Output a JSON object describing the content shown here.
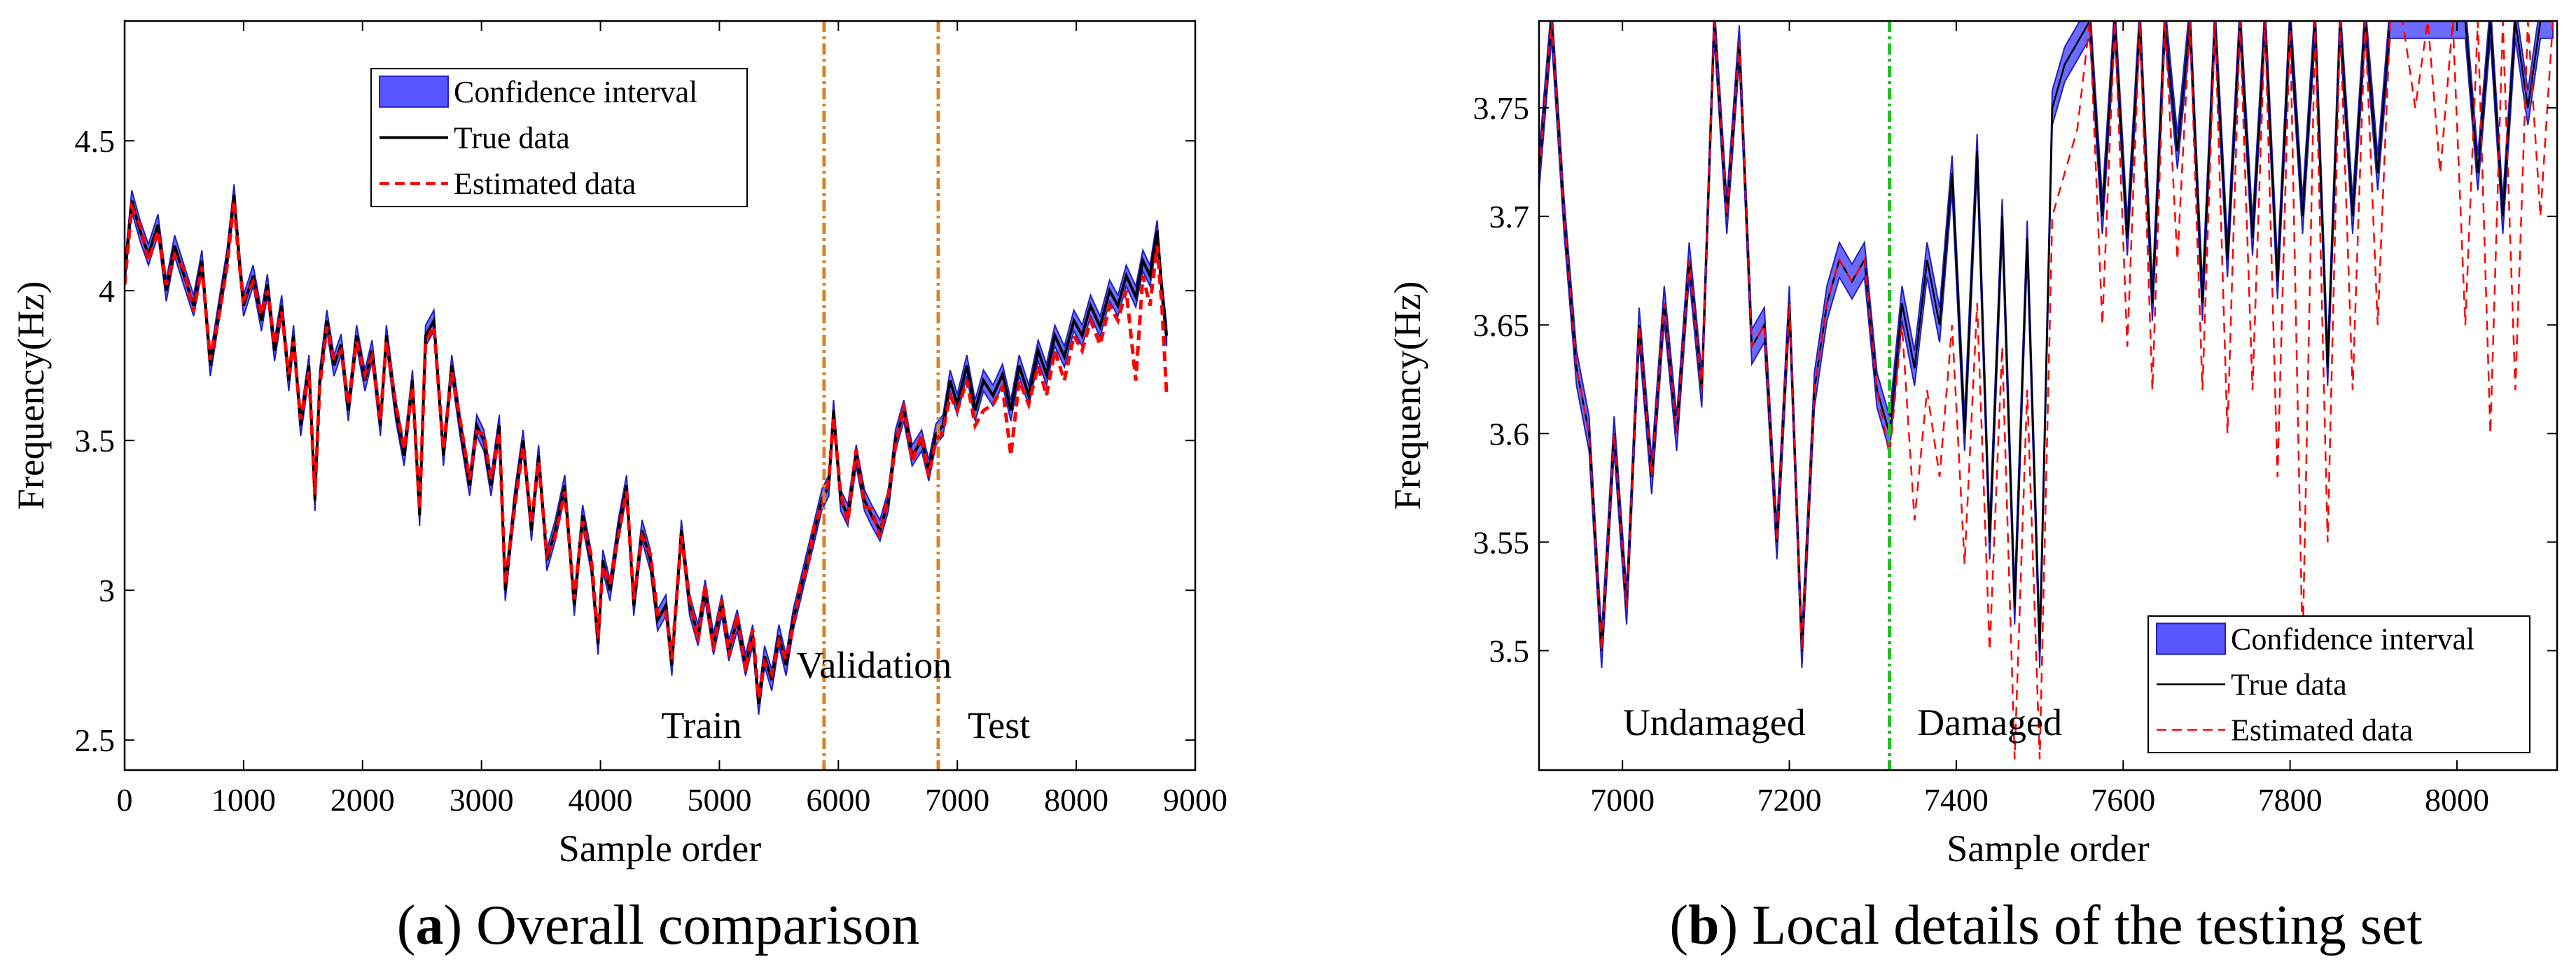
{
  "chart_data": [
    {
      "id": "a",
      "type": "line",
      "caption_letter": "a",
      "caption_text": ") Overall comparison",
      "caption_open": "(",
      "xlabel": "Sample order",
      "ylabel": "Frequency(Hz)",
      "xlim": [
        0,
        9000
      ],
      "ylim": [
        2.4,
        4.9
      ],
      "xticks": [
        0,
        1000,
        2000,
        3000,
        4000,
        5000,
        6000,
        7000,
        8000,
        9000
      ],
      "xtick_labels": [
        "0",
        "1000",
        "2000",
        "3000",
        "4000",
        "5000",
        "6000",
        "7000",
        "8000",
        "9000"
      ],
      "yticks": [
        2.5,
        3,
        3.5,
        4,
        4.5
      ],
      "ytick_labels": [
        "2.5",
        "3",
        "3.5",
        "4",
        "4.5"
      ],
      "legend": [
        "Confidence interval",
        "True data",
        "Estimated data"
      ],
      "legend_position": "top-center",
      "split_lines": [
        5880,
        6840
      ],
      "region_labels": [
        {
          "text": "Train",
          "x": 4850,
          "y": 2.55
        },
        {
          "text": "Validation",
          "x": 6300,
          "y": 2.75
        },
        {
          "text": "Test",
          "x": 7350,
          "y": 2.55
        }
      ],
      "series": [
        {
          "name": "True data",
          "x": [
            0,
            60,
            130,
            200,
            280,
            350,
            420,
            500,
            580,
            650,
            720,
            800,
            860,
            920,
            960,
            1000,
            1080,
            1150,
            1200,
            1260,
            1320,
            1380,
            1420,
            1480,
            1550,
            1600,
            1640,
            1700,
            1760,
            1820,
            1880,
            1950,
            2020,
            2080,
            2150,
            2200,
            2280,
            2350,
            2420,
            2480,
            2530,
            2600,
            2680,
            2750,
            2820,
            2900,
            2960,
            3020,
            3080,
            3150,
            3200,
            3280,
            3350,
            3420,
            3480,
            3550,
            3620,
            3700,
            3780,
            3850,
            3920,
            3980,
            4020,
            4080,
            4150,
            4220,
            4280,
            4350,
            4420,
            4480,
            4550,
            4600,
            4680,
            4750,
            4820,
            4880,
            4950,
            5020,
            5080,
            5150,
            5220,
            5280,
            5330,
            5380,
            5440,
            5500,
            5560,
            5620,
            5680,
            5740,
            5800,
            5860,
            5920,
            5960,
            6020,
            6080,
            6150,
            6220,
            6280,
            6350,
            6420,
            6480,
            6550,
            6620,
            6700,
            6760,
            6820,
            6880,
            6940,
            7000,
            7080,
            7150,
            7220,
            7300,
            7380,
            7450,
            7520,
            7600,
            7680,
            7750,
            7820,
            7900,
            7980,
            8050,
            8120,
            8200,
            8280,
            8350,
            8420,
            8500,
            8560,
            8620,
            8680,
            8720,
            8760
          ],
          "values": [
            4.05,
            4.3,
            4.2,
            4.12,
            4.22,
            4.0,
            4.15,
            4.05,
            3.95,
            4.1,
            3.75,
            3.95,
            4.1,
            4.32,
            4.12,
            3.95,
            4.05,
            3.9,
            4.02,
            3.8,
            3.95,
            3.7,
            3.85,
            3.55,
            3.75,
            3.3,
            3.7,
            3.9,
            3.75,
            3.82,
            3.6,
            3.85,
            3.7,
            3.8,
            3.55,
            3.85,
            3.6,
            3.45,
            3.7,
            3.25,
            3.85,
            3.9,
            3.45,
            3.75,
            3.55,
            3.35,
            3.55,
            3.5,
            3.35,
            3.55,
            3.0,
            3.3,
            3.5,
            3.2,
            3.45,
            3.1,
            3.2,
            3.35,
            2.95,
            3.25,
            3.1,
            2.82,
            3.1,
            3.0,
            3.2,
            3.35,
            2.95,
            3.2,
            3.1,
            2.9,
            2.95,
            2.75,
            3.2,
            2.95,
            2.85,
            3.0,
            2.82,
            2.95,
            2.8,
            2.9,
            2.75,
            2.85,
            2.62,
            2.78,
            2.7,
            2.85,
            2.75,
            2.9,
            3.0,
            3.1,
            3.2,
            3.3,
            3.35,
            3.6,
            3.3,
            3.25,
            3.45,
            3.3,
            3.25,
            3.2,
            3.3,
            3.5,
            3.6,
            3.45,
            3.5,
            3.4,
            3.52,
            3.55,
            3.7,
            3.62,
            3.75,
            3.6,
            3.7,
            3.65,
            3.72,
            3.6,
            3.75,
            3.65,
            3.8,
            3.72,
            3.85,
            3.78,
            3.9,
            3.85,
            3.95,
            3.88,
            4.0,
            3.95,
            4.05,
            3.98,
            4.1,
            4.05,
            4.2,
            4.0,
            3.85
          ]
        },
        {
          "name": "Estimated data",
          "x": [
            0,
            60,
            130,
            200,
            280,
            350,
            420,
            500,
            580,
            650,
            720,
            800,
            860,
            920,
            960,
            1000,
            1080,
            1150,
            1200,
            1260,
            1320,
            1380,
            1420,
            1480,
            1550,
            1600,
            1640,
            1700,
            1760,
            1820,
            1880,
            1950,
            2020,
            2080,
            2150,
            2200,
            2280,
            2350,
            2420,
            2480,
            2530,
            2600,
            2680,
            2750,
            2820,
            2900,
            2960,
            3020,
            3080,
            3150,
            3200,
            3280,
            3350,
            3420,
            3480,
            3550,
            3620,
            3700,
            3780,
            3850,
            3920,
            3980,
            4020,
            4080,
            4150,
            4220,
            4280,
            4350,
            4420,
            4480,
            4550,
            4600,
            4680,
            4750,
            4820,
            4880,
            4950,
            5020,
            5080,
            5150,
            5220,
            5280,
            5330,
            5380,
            5440,
            5500,
            5560,
            5620,
            5680,
            5740,
            5800,
            5860,
            5920,
            5960,
            6020,
            6080,
            6150,
            6220,
            6280,
            6350,
            6420,
            6480,
            6550,
            6620,
            6700,
            6760,
            6820,
            6880,
            6940,
            7000,
            7080,
            7150,
            7220,
            7300,
            7380,
            7450,
            7520,
            7600,
            7680,
            7750,
            7820,
            7900,
            7980,
            8050,
            8120,
            8200,
            8280,
            8350,
            8420,
            8500,
            8560,
            8620,
            8680,
            8720,
            8760
          ],
          "values": [
            4.02,
            4.28,
            4.22,
            4.1,
            4.2,
            4.02,
            4.12,
            4.07,
            3.93,
            4.08,
            3.77,
            3.93,
            4.08,
            4.3,
            4.1,
            3.97,
            4.03,
            3.92,
            4.0,
            3.82,
            3.93,
            3.72,
            3.83,
            3.57,
            3.73,
            3.32,
            3.68,
            3.88,
            3.77,
            3.8,
            3.62,
            3.83,
            3.72,
            3.78,
            3.57,
            3.83,
            3.62,
            3.47,
            3.68,
            3.27,
            3.83,
            3.88,
            3.47,
            3.73,
            3.57,
            3.37,
            3.53,
            3.52,
            3.37,
            3.53,
            3.02,
            3.28,
            3.48,
            3.22,
            3.43,
            3.12,
            3.18,
            3.33,
            2.97,
            3.23,
            3.12,
            2.84,
            3.08,
            3.02,
            3.18,
            3.33,
            2.97,
            3.18,
            3.12,
            2.92,
            2.93,
            2.77,
            3.18,
            2.97,
            2.83,
            3.02,
            2.8,
            2.97,
            2.78,
            2.92,
            2.73,
            2.87,
            2.64,
            2.76,
            2.72,
            2.83,
            2.77,
            2.88,
            3.02,
            3.08,
            3.22,
            3.28,
            3.37,
            3.58,
            3.32,
            3.23,
            3.47,
            3.28,
            3.27,
            3.18,
            3.32,
            3.48,
            3.62,
            3.43,
            3.52,
            3.38,
            3.5,
            3.53,
            3.65,
            3.6,
            3.7,
            3.55,
            3.6,
            3.62,
            3.68,
            3.45,
            3.7,
            3.62,
            3.75,
            3.65,
            3.8,
            3.7,
            3.85,
            3.8,
            3.9,
            3.82,
            3.95,
            3.9,
            4.0,
            3.7,
            4.05,
            3.95,
            4.15,
            3.95,
            3.65
          ]
        }
      ]
    },
    {
      "id": "b",
      "type": "line",
      "caption_letter": "b",
      "caption_text": ") Local details of the testing set",
      "caption_open": "(",
      "xlabel": "Sample order",
      "ylabel": "Frequency(Hz)",
      "xlim": [
        6900,
        8120
      ],
      "ylim": [
        3.445,
        3.79
      ],
      "xticks": [
        7000,
        7200,
        7400,
        7600,
        7800,
        8000
      ],
      "xtick_labels": [
        "7000",
        "7200",
        "7400",
        "7600",
        "7800",
        "8000"
      ],
      "yticks": [
        3.5,
        3.55,
        3.6,
        3.65,
        3.7,
        3.75
      ],
      "ytick_labels": [
        "3.5",
        "3.55",
        "3.6",
        "3.65",
        "3.7",
        "3.75"
      ],
      "legend": [
        "Confidence interval",
        "True data",
        "Estimated data"
      ],
      "legend_position": "bottom-right",
      "split_lines": [
        7320
      ],
      "region_labels": [
        {
          "text": "Undamaged",
          "x": 7110,
          "y": 3.467
        },
        {
          "text": "Damaged",
          "x": 7440,
          "y": 3.467
        }
      ],
      "series": [
        {
          "name": "True data",
          "x": [
            6900,
            6915,
            6930,
            6945,
            6960,
            6975,
            6990,
            7005,
            7020,
            7035,
            7050,
            7065,
            7080,
            7095,
            7110,
            7125,
            7140,
            7155,
            7170,
            7185,
            7200,
            7215,
            7230,
            7245,
            7260,
            7275,
            7290,
            7305,
            7320,
            7335,
            7350,
            7365,
            7380,
            7395,
            7410,
            7425,
            7440,
            7455,
            7470,
            7485,
            7500,
            7515,
            7530,
            7545,
            7560,
            7575,
            7590,
            7605,
            7620,
            7635,
            7650,
            7665,
            7680,
            7695,
            7710,
            7725,
            7740,
            7755,
            7770,
            7785,
            7800,
            7815,
            7830,
            7845,
            7860,
            7875,
            7890,
            7905,
            7920,
            7935,
            7950,
            7965,
            7980,
            7995,
            8010,
            8025,
            8040,
            8055,
            8070,
            8085,
            8100,
            8115
          ],
          "values": [
            3.72,
            3.79,
            3.7,
            3.63,
            3.6,
            3.5,
            3.6,
            3.52,
            3.65,
            3.58,
            3.66,
            3.6,
            3.68,
            3.62,
            3.79,
            3.7,
            3.78,
            3.64,
            3.65,
            3.55,
            3.66,
            3.5,
            3.62,
            3.66,
            3.68,
            3.67,
            3.68,
            3.62,
            3.6,
            3.66,
            3.63,
            3.68,
            3.65,
            3.72,
            3.6,
            3.73,
            3.55,
            3.7,
            3.52,
            3.69,
            3.5,
            3.75,
            3.77,
            3.78,
            3.79,
            3.7,
            3.79,
            3.69,
            3.79,
            3.66,
            3.79,
            3.73,
            3.79,
            3.66,
            3.79,
            3.68,
            3.79,
            3.69,
            3.79,
            3.67,
            3.79,
            3.7,
            3.79,
            3.63,
            3.79,
            3.7,
            3.79,
            3.72,
            3.79,
            3.79,
            3.79,
            3.79,
            3.79,
            3.79,
            3.79,
            3.72,
            3.79,
            3.7,
            3.79,
            3.75,
            3.79,
            3.79
          ]
        },
        {
          "name": "Estimated data",
          "x": [
            6900,
            6915,
            6930,
            6945,
            6960,
            6975,
            6990,
            7005,
            7020,
            7035,
            7050,
            7065,
            7080,
            7095,
            7110,
            7125,
            7140,
            7155,
            7170,
            7185,
            7200,
            7215,
            7230,
            7245,
            7260,
            7275,
            7290,
            7305,
            7320,
            7335,
            7350,
            7365,
            7380,
            7395,
            7410,
            7425,
            7440,
            7455,
            7470,
            7485,
            7500,
            7515,
            7530,
            7545,
            7560,
            7575,
            7590,
            7605,
            7620,
            7635,
            7650,
            7665,
            7680,
            7695,
            7710,
            7725,
            7740,
            7755,
            7770,
            7785,
            7800,
            7815,
            7830,
            7845,
            7860,
            7875,
            7890,
            7905,
            7920,
            7935,
            7950,
            7965,
            7980,
            7995,
            8010,
            8025,
            8040,
            8055,
            8070,
            8085,
            8100,
            8115
          ],
          "values": [
            3.72,
            3.79,
            3.7,
            3.63,
            3.6,
            3.5,
            3.6,
            3.52,
            3.65,
            3.58,
            3.66,
            3.6,
            3.68,
            3.62,
            3.79,
            3.7,
            3.78,
            3.64,
            3.65,
            3.55,
            3.66,
            3.5,
            3.62,
            3.66,
            3.68,
            3.67,
            3.68,
            3.62,
            3.59,
            3.65,
            3.56,
            3.62,
            3.58,
            3.65,
            3.54,
            3.66,
            3.5,
            3.64,
            3.45,
            3.62,
            3.45,
            3.7,
            3.72,
            3.74,
            3.79,
            3.65,
            3.79,
            3.64,
            3.79,
            3.62,
            3.79,
            3.68,
            3.79,
            3.62,
            3.79,
            3.6,
            3.79,
            3.62,
            3.79,
            3.58,
            3.79,
            3.5,
            3.79,
            3.55,
            3.79,
            3.62,
            3.79,
            3.65,
            3.79,
            3.79,
            3.75,
            3.79,
            3.72,
            3.79,
            3.65,
            3.79,
            3.6,
            3.79,
            3.62,
            3.79,
            3.7,
            3.79
          ]
        }
      ]
    }
  ]
}
